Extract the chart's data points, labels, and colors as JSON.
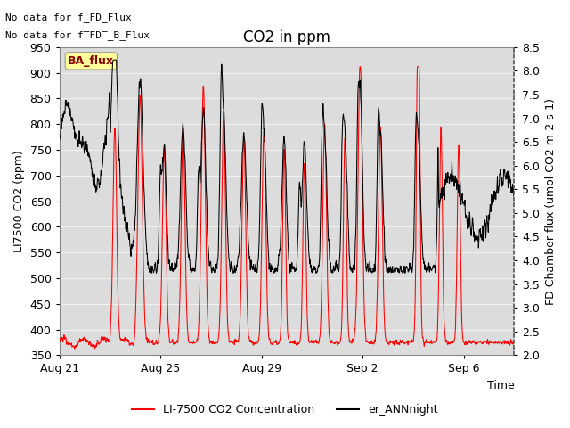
{
  "title": "CO2 in ppm",
  "xlabel": "Time",
  "ylabel_left": "LI7500 CO2 (ppm)",
  "ylabel_right": "FD Chamber flux (umol CO2 m-2 s-1)",
  "text_no_data_1": "No data for f_FD_Flux",
  "text_no_data_2": "No data for f̅FD̅_B_Flux",
  "ba_flux_label": "BA_flux",
  "legend_entries": [
    "LI-7500 CO2 Concentration",
    "er_ANNnight"
  ],
  "ylim_left": [
    350,
    950
  ],
  "ylim_right": [
    2.0,
    8.5
  ],
  "yticks_left": [
    350,
    400,
    450,
    500,
    550,
    600,
    650,
    700,
    750,
    800,
    850,
    900,
    950
  ],
  "yticks_right": [
    2.0,
    2.5,
    3.0,
    3.5,
    4.0,
    4.5,
    5.0,
    5.5,
    6.0,
    6.5,
    7.0,
    7.5,
    8.0,
    8.5
  ],
  "xtick_labels": [
    "Aug 21",
    "Aug 25",
    "Aug 29",
    "Sep 2",
    "Sep 6"
  ],
  "xtick_positions": [
    0,
    4,
    8,
    12,
    16
  ],
  "color_red": "#FF0000",
  "color_black": "#000000",
  "background_plot": "#DCDCDC",
  "background_fig": "#FFFFFF",
  "ba_flux_bg": "#FFFF99",
  "ba_flux_fg": "#8B0000",
  "font_size_title": 12,
  "font_size_labels": 9,
  "font_size_ticks": 9,
  "font_size_legend": 9,
  "grid_color": "#F0F0F0",
  "nodata_fontsize": 8
}
